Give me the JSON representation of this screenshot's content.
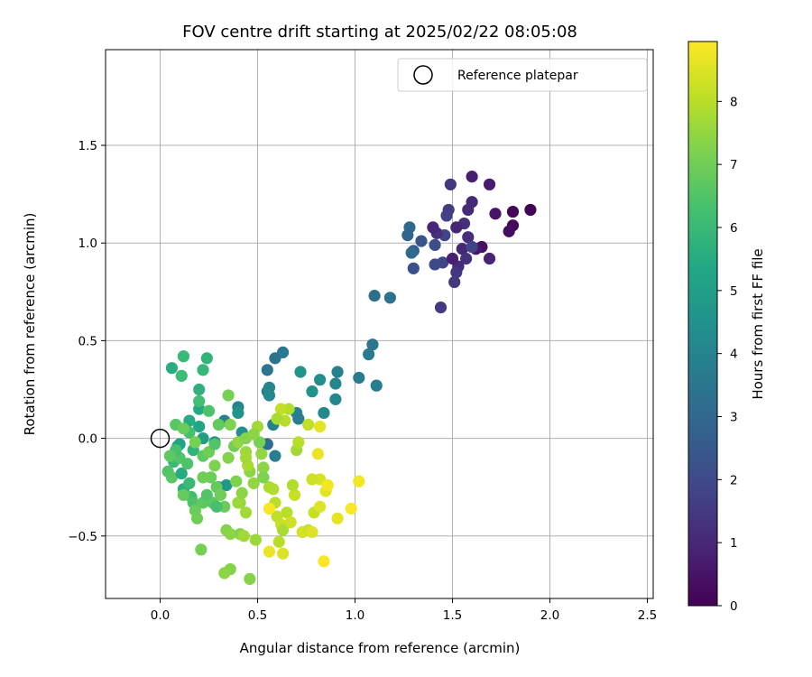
{
  "chart_data": {
    "type": "scatter",
    "title": "FOV centre drift starting at 2025/02/22 08:05:08",
    "xlabel": "Angular distance from reference (arcmin)",
    "ylabel": "Rotation from reference (arcmin)",
    "xlim": [
      -0.28,
      2.53
    ],
    "ylim": [
      -0.82,
      1.99
    ],
    "xticks": [
      0.0,
      0.5,
      1.0,
      1.5,
      2.0,
      2.5
    ],
    "xtick_labels": [
      "0.0",
      "0.5",
      "1.0",
      "1.5",
      "2.0",
      "2.5"
    ],
    "yticks": [
      -0.5,
      0.0,
      0.5,
      1.0,
      1.5
    ],
    "ytick_labels": [
      "−0.5",
      "0.0",
      "0.5",
      "1.0",
      "1.5"
    ],
    "grid": true,
    "legend": {
      "placement": "top-right",
      "entries": [
        "Reference platepar"
      ]
    },
    "reference_point": {
      "x": 0.0,
      "y": 0.0
    },
    "colorbar": {
      "label": "Hours from first FF file",
      "range": [
        0,
        8.95
      ],
      "ticks": [
        0,
        1,
        2,
        3,
        4,
        5,
        6,
        7,
        8
      ],
      "tick_labels": [
        "0",
        "1",
        "2",
        "3",
        "4",
        "5",
        "6",
        "7",
        "8"
      ],
      "colormap": "viridis"
    },
    "points": [
      [
        1.9,
        1.17,
        0.05
      ],
      [
        1.81,
        1.16,
        0.1
      ],
      [
        1.81,
        1.09,
        0.2
      ],
      [
        1.79,
        1.06,
        0.3
      ],
      [
        1.72,
        1.15,
        0.5
      ],
      [
        1.69,
        1.3,
        0.7
      ],
      [
        1.6,
        1.34,
        0.8
      ],
      [
        1.69,
        0.92,
        0.9
      ],
      [
        1.65,
        0.98,
        0.4
      ],
      [
        1.62,
        0.97,
        0.6
      ],
      [
        1.6,
        1.21,
        1.0
      ],
      [
        1.58,
        1.17,
        1.1
      ],
      [
        1.58,
        1.03,
        1.2
      ],
      [
        1.55,
        0.97,
        1.0
      ],
      [
        1.57,
        0.92,
        1.3
      ],
      [
        1.53,
        0.88,
        1.1
      ],
      [
        1.52,
        0.85,
        1.4
      ],
      [
        1.51,
        0.8,
        1.5
      ],
      [
        1.56,
        1.1,
        1.2
      ],
      [
        1.52,
        1.08,
        0.9
      ],
      [
        1.49,
        1.3,
        1.4
      ],
      [
        1.48,
        1.17,
        1.6
      ],
      [
        1.47,
        1.14,
        1.7
      ],
      [
        1.46,
        1.04,
        1.8
      ],
      [
        1.45,
        0.9,
        1.9
      ],
      [
        1.42,
        1.05,
        1.2
      ],
      [
        1.4,
        1.08,
        1.0
      ],
      [
        1.41,
        0.89,
        2.0
      ],
      [
        1.41,
        0.99,
        2.1
      ],
      [
        1.34,
        1.01,
        2.3
      ],
      [
        1.44,
        0.67,
        1.5
      ],
      [
        1.6,
        0.98,
        1.8
      ],
      [
        1.5,
        0.92,
        0.8
      ],
      [
        1.3,
        0.96,
        2.6
      ],
      [
        1.28,
        1.08,
        3.0
      ],
      [
        1.27,
        1.04,
        2.9
      ],
      [
        1.29,
        0.95,
        3.1
      ],
      [
        1.3,
        0.87,
        2.2
      ],
      [
        1.1,
        0.73,
        3.3
      ],
      [
        1.18,
        0.72,
        3.4
      ],
      [
        1.09,
        0.48,
        3.5
      ],
      [
        1.07,
        0.43,
        3.6
      ],
      [
        1.11,
        0.27,
        3.8
      ],
      [
        1.02,
        0.31,
        3.7
      ],
      [
        0.91,
        0.34,
        3.9
      ],
      [
        0.9,
        0.28,
        4.0
      ],
      [
        0.9,
        0.2,
        4.1
      ],
      [
        0.84,
        0.13,
        4.2
      ],
      [
        0.82,
        0.3,
        4.3
      ],
      [
        0.78,
        0.24,
        4.5
      ],
      [
        0.72,
        0.34,
        4.6
      ],
      [
        0.63,
        0.44,
        3.6
      ],
      [
        0.59,
        0.41,
        3.4
      ],
      [
        0.55,
        0.35,
        3.5
      ],
      [
        0.55,
        0.24,
        3.7
      ],
      [
        0.56,
        0.26,
        4.1
      ],
      [
        0.56,
        0.22,
        4.2
      ],
      [
        0.58,
        0.07,
        3.9
      ],
      [
        0.7,
        0.13,
        4.0
      ],
      [
        0.71,
        0.1,
        3.8
      ],
      [
        0.55,
        -0.03,
        3.2
      ],
      [
        0.59,
        -0.09,
        3.8
      ],
      [
        0.4,
        0.16,
        4.0
      ],
      [
        0.4,
        0.13,
        4.5
      ],
      [
        0.33,
        0.09,
        3.9
      ],
      [
        0.42,
        0.03,
        4.4
      ],
      [
        0.28,
        -0.02,
        4.6
      ],
      [
        0.34,
        -0.24,
        4.8
      ],
      [
        0.3,
        -0.25,
        4.3
      ],
      [
        0.22,
        0.0,
        5.0
      ],
      [
        0.2,
        0.06,
        5.3
      ],
      [
        0.15,
        0.09,
        5.5
      ],
      [
        0.2,
        0.15,
        5.4
      ],
      [
        0.2,
        0.25,
        5.7
      ],
      [
        0.24,
        0.41,
        5.8
      ],
      [
        0.22,
        0.35,
        5.9
      ],
      [
        0.12,
        0.42,
        6.0
      ],
      [
        0.11,
        0.32,
        6.1
      ],
      [
        0.06,
        0.36,
        5.6
      ],
      [
        0.2,
        0.19,
        6.2
      ],
      [
        0.25,
        0.14,
        6.4
      ],
      [
        0.15,
        0.03,
        6.3
      ],
      [
        0.1,
        -0.03,
        5.1
      ],
      [
        0.09,
        -0.04,
        5.2
      ],
      [
        0.17,
        -0.06,
        5.8
      ],
      [
        0.07,
        -0.12,
        6.0
      ],
      [
        0.04,
        -0.17,
        6.5
      ],
      [
        0.06,
        -0.2,
        6.6
      ],
      [
        0.11,
        -0.18,
        5.5
      ],
      [
        0.12,
        -0.26,
        5.6
      ],
      [
        0.15,
        -0.23,
        6.0
      ],
      [
        0.16,
        -0.3,
        6.2
      ],
      [
        0.17,
        -0.33,
        6.4
      ],
      [
        0.12,
        -0.29,
        6.8
      ],
      [
        0.18,
        -0.37,
        6.9
      ],
      [
        0.19,
        -0.41,
        7.0
      ],
      [
        0.22,
        -0.33,
        6.7
      ],
      [
        0.24,
        -0.29,
        6.5
      ],
      [
        0.27,
        -0.33,
        6.6
      ],
      [
        0.29,
        -0.25,
        6.8
      ],
      [
        0.31,
        -0.29,
        7.0
      ],
      [
        0.33,
        -0.35,
        6.9
      ],
      [
        0.29,
        -0.35,
        6.3
      ],
      [
        0.08,
        0.07,
        6.6
      ],
      [
        0.12,
        0.05,
        6.9
      ],
      [
        0.18,
        -0.02,
        7.1
      ],
      [
        0.22,
        -0.09,
        6.7
      ],
      [
        0.25,
        -0.07,
        7.0
      ],
      [
        0.28,
        -0.03,
        6.5
      ],
      [
        0.3,
        0.07,
        6.8
      ],
      [
        0.35,
        0.22,
        7.1
      ],
      [
        0.36,
        0.07,
        7.2
      ],
      [
        0.34,
        -0.47,
        7.3
      ],
      [
        0.36,
        -0.49,
        7.4
      ],
      [
        0.41,
        -0.49,
        7.3
      ],
      [
        0.36,
        -0.67,
        7.3
      ],
      [
        0.33,
        -0.69,
        7.4
      ],
      [
        0.46,
        -0.72,
        7.3
      ],
      [
        0.49,
        -0.52,
        7.6
      ],
      [
        0.21,
        -0.57,
        7.1
      ],
      [
        0.43,
        -0.5,
        7.7
      ],
      [
        0.41,
        -0.33,
        7.5
      ],
      [
        0.4,
        -0.33,
        7.6
      ],
      [
        0.44,
        -0.38,
        7.7
      ],
      [
        0.42,
        -0.28,
        7.4
      ],
      [
        0.39,
        -0.22,
        7.2
      ],
      [
        0.38,
        -0.04,
        7.0
      ],
      [
        0.4,
        -0.02,
        7.5
      ],
      [
        0.44,
        0.0,
        7.3
      ],
      [
        0.44,
        -0.07,
        7.6
      ],
      [
        0.46,
        -0.17,
        7.4
      ],
      [
        0.48,
        -0.23,
        7.5
      ],
      [
        0.45,
        -0.14,
        7.8
      ],
      [
        0.5,
        0.06,
        7.7
      ],
      [
        0.51,
        -0.02,
        7.1
      ],
      [
        0.53,
        -0.15,
        7.4
      ],
      [
        0.56,
        -0.25,
        7.8
      ],
      [
        0.58,
        -0.26,
        7.9
      ],
      [
        0.59,
        -0.33,
        8.0
      ],
      [
        0.6,
        -0.4,
        8.1
      ],
      [
        0.62,
        -0.44,
        8.2
      ],
      [
        0.61,
        -0.53,
        8.0
      ],
      [
        0.63,
        -0.47,
        7.8
      ],
      [
        0.65,
        -0.38,
        8.0
      ],
      [
        0.67,
        -0.43,
        8.3
      ],
      [
        0.69,
        -0.29,
        8.2
      ],
      [
        0.68,
        -0.24,
        7.9
      ],
      [
        0.7,
        -0.06,
        7.7
      ],
      [
        0.71,
        -0.02,
        8.0
      ],
      [
        0.66,
        0.15,
        7.9
      ],
      [
        0.62,
        0.15,
        8.1
      ],
      [
        0.64,
        0.09,
        8.0
      ],
      [
        0.6,
        0.1,
        7.8
      ],
      [
        0.73,
        -0.48,
        8.4
      ],
      [
        0.76,
        -0.47,
        8.3
      ],
      [
        0.78,
        -0.48,
        8.5
      ],
      [
        0.79,
        -0.38,
        8.2
      ],
      [
        0.82,
        -0.35,
        8.5
      ],
      [
        0.82,
        -0.21,
        8.4
      ],
      [
        0.85,
        -0.27,
        8.6
      ],
      [
        0.78,
        -0.21,
        8.3
      ],
      [
        0.76,
        0.07,
        8.1
      ],
      [
        0.82,
        0.06,
        8.6
      ],
      [
        0.81,
        -0.08,
        8.7
      ],
      [
        0.86,
        -0.24,
        8.8
      ],
      [
        0.84,
        -0.63,
        8.9
      ],
      [
        0.91,
        -0.41,
        8.6
      ],
      [
        0.98,
        -0.36,
        8.9
      ],
      [
        1.02,
        -0.22,
        8.8
      ],
      [
        0.56,
        -0.36,
        8.9
      ],
      [
        0.56,
        -0.58,
        8.7
      ],
      [
        0.63,
        -0.59,
        8.5
      ],
      [
        0.53,
        -0.2,
        7.2
      ],
      [
        0.35,
        -0.1,
        7.3
      ],
      [
        0.28,
        -0.14,
        7.2
      ],
      [
        0.26,
        -0.2,
        6.9
      ],
      [
        0.22,
        -0.2,
        7.0
      ],
      [
        0.14,
        -0.13,
        6.4
      ],
      [
        0.1,
        -0.1,
        6.5
      ],
      [
        0.08,
        -0.06,
        6.3
      ],
      [
        0.05,
        -0.09,
        6.7
      ],
      [
        0.44,
        -0.1,
        7.7
      ],
      [
        0.48,
        0.02,
        7.4
      ],
      [
        0.52,
        -0.08,
        7.5
      ]
    ]
  }
}
